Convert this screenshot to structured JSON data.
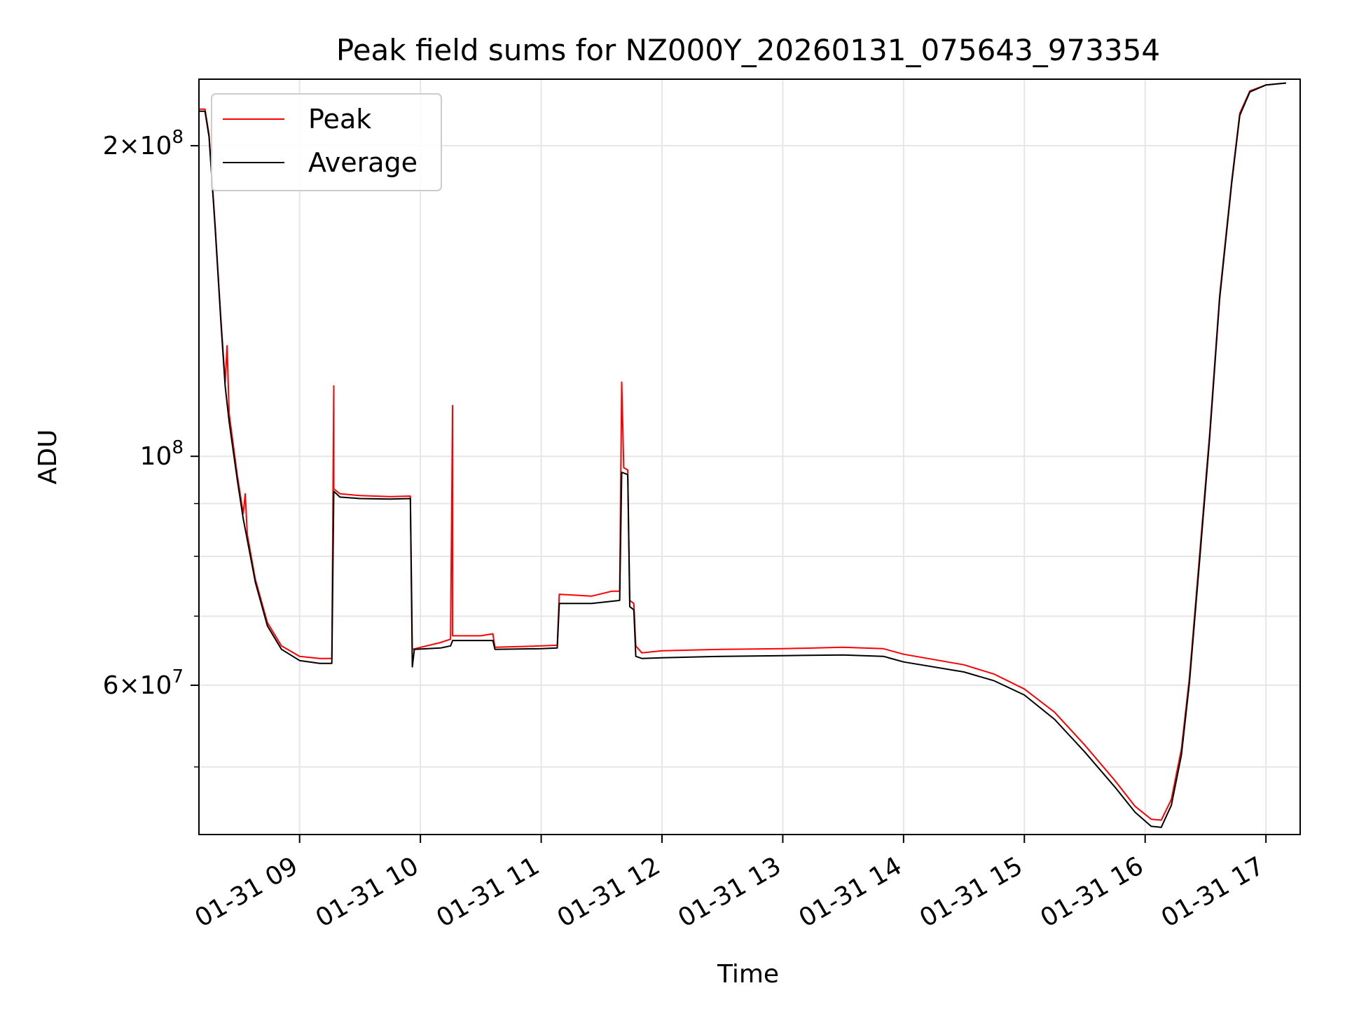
{
  "chart_data": {
    "type": "line",
    "title": "Peak field sums for NZ000Y_20260131_075643_973354",
    "xlabel": "Time",
    "ylabel": "ADU",
    "y_scale": "log",
    "ylim": [
      43000000,
      232000000
    ],
    "xlim": [
      "2026-01-31 08:10",
      "2026-01-31 17:17"
    ],
    "grid": true,
    "legend": "top-left",
    "x_ticks": [
      {
        "t": "2026-01-31 09:00",
        "label": "01-31 09"
      },
      {
        "t": "2026-01-31 10:00",
        "label": "01-31 10"
      },
      {
        "t": "2026-01-31 11:00",
        "label": "01-31 11"
      },
      {
        "t": "2026-01-31 12:00",
        "label": "01-31 12"
      },
      {
        "t": "2026-01-31 13:00",
        "label": "01-31 13"
      },
      {
        "t": "2026-01-31 14:00",
        "label": "01-31 14"
      },
      {
        "t": "2026-01-31 15:00",
        "label": "01-31 15"
      },
      {
        "t": "2026-01-31 16:00",
        "label": "01-31 16"
      },
      {
        "t": "2026-01-31 17:00",
        "label": "01-31 17"
      }
    ],
    "y_major_ticks": [
      {
        "value": 60000000,
        "mant": "6",
        "exp": "7"
      },
      {
        "value": 100000000,
        "mant": "",
        "exp": "8"
      },
      {
        "value": 200000000,
        "mant": "2",
        "exp": "8"
      }
    ],
    "y_minor_ticks": [
      50000000,
      70000000,
      80000000,
      90000000
    ],
    "series": [
      {
        "name": "Peak",
        "color": "#ff0000",
        "points": [
          [
            "2026-01-31 08:10",
            217000000
          ],
          [
            "2026-01-31 08:13",
            217000000
          ],
          [
            "2026-01-31 08:15",
            205000000
          ],
          [
            "2026-01-31 08:18",
            168000000
          ],
          [
            "2026-01-31 08:21",
            135000000
          ],
          [
            "2026-01-31 08:23",
            118000000
          ],
          [
            "2026-01-31 08:24",
            128000000
          ],
          [
            "2026-01-31 08:25",
            110000000
          ],
          [
            "2026-01-31 08:29",
            96000000
          ],
          [
            "2026-01-31 08:32",
            88000000
          ],
          [
            "2026-01-31 08:33",
            92000000
          ],
          [
            "2026-01-31 08:34",
            84000000
          ],
          [
            "2026-01-31 08:38",
            76000000
          ],
          [
            "2026-01-31 08:44",
            69000000
          ],
          [
            "2026-01-31 08:51",
            65500000
          ],
          [
            "2026-01-31 09:00",
            64000000
          ],
          [
            "2026-01-31 09:10",
            63700000
          ],
          [
            "2026-01-31 09:16",
            63700000
          ],
          [
            "2026-01-31 09:17",
            117000000
          ],
          [
            "2026-01-31 09:17",
            93000000
          ],
          [
            "2026-01-31 09:20",
            92000000
          ],
          [
            "2026-01-31 09:30",
            91600000
          ],
          [
            "2026-01-31 09:45",
            91400000
          ],
          [
            "2026-01-31 09:55",
            91500000
          ],
          [
            "2026-01-31 09:56",
            65000000
          ],
          [
            "2026-01-31 10:10",
            66000000
          ],
          [
            "2026-01-31 10:15",
            66500000
          ],
          [
            "2026-01-31 10:16",
            112000000
          ],
          [
            "2026-01-31 10:16",
            67000000
          ],
          [
            "2026-01-31 10:30",
            67000000
          ],
          [
            "2026-01-31 10:36",
            67300000
          ],
          [
            "2026-01-31 10:37",
            65300000
          ],
          [
            "2026-01-31 11:00",
            65500000
          ],
          [
            "2026-01-31 11:08",
            65600000
          ],
          [
            "2026-01-31 11:09",
            73500000
          ],
          [
            "2026-01-31 11:25",
            73200000
          ],
          [
            "2026-01-31 11:35",
            74000000
          ],
          [
            "2026-01-31 11:39",
            74000000
          ],
          [
            "2026-01-31 11:40",
            118000000
          ],
          [
            "2026-01-31 11:41",
            97500000
          ],
          [
            "2026-01-31 11:43",
            97000000
          ],
          [
            "2026-01-31 11:44",
            72500000
          ],
          [
            "2026-01-31 11:46",
            72000000
          ],
          [
            "2026-01-31 11:47",
            65500000
          ],
          [
            "2026-01-31 11:50",
            64500000
          ],
          [
            "2026-01-31 12:00",
            64800000
          ],
          [
            "2026-01-31 12:30",
            65000000
          ],
          [
            "2026-01-31 13:00",
            65100000
          ],
          [
            "2026-01-31 13:30",
            65300000
          ],
          [
            "2026-01-31 13:50",
            65100000
          ],
          [
            "2026-01-31 14:00",
            64300000
          ],
          [
            "2026-01-31 14:30",
            62800000
          ],
          [
            "2026-01-31 14:45",
            61500000
          ],
          [
            "2026-01-31 15:00",
            59500000
          ],
          [
            "2026-01-31 15:15",
            56500000
          ],
          [
            "2026-01-31 15:30",
            52500000
          ],
          [
            "2026-01-31 15:45",
            48500000
          ],
          [
            "2026-01-31 15:55",
            45800000
          ],
          [
            "2026-01-31 16:03",
            44500000
          ],
          [
            "2026-01-31 16:08",
            44400000
          ],
          [
            "2026-01-31 16:13",
            46500000
          ],
          [
            "2026-01-31 16:18",
            52000000
          ],
          [
            "2026-01-31 16:22",
            61000000
          ],
          [
            "2026-01-31 16:27",
            80000000
          ],
          [
            "2026-01-31 16:32",
            105000000
          ],
          [
            "2026-01-31 16:37",
            143000000
          ],
          [
            "2026-01-31 16:43",
            185000000
          ],
          [
            "2026-01-31 16:47",
            215000000
          ],
          [
            "2026-01-31 16:52",
            226000000
          ],
          [
            "2026-01-31 17:00",
            229000000
          ],
          [
            "2026-01-31 17:10",
            230000000
          ]
        ]
      },
      {
        "name": "Average",
        "color": "#000000",
        "points": [
          [
            "2026-01-31 08:10",
            216000000
          ],
          [
            "2026-01-31 08:13",
            216000000
          ],
          [
            "2026-01-31 08:15",
            204000000
          ],
          [
            "2026-01-31 08:18",
            167000000
          ],
          [
            "2026-01-31 08:21",
            134000000
          ],
          [
            "2026-01-31 08:23",
            117000000
          ],
          [
            "2026-01-31 08:25",
            108000000
          ],
          [
            "2026-01-31 08:29",
            95000000
          ],
          [
            "2026-01-31 08:32",
            87000000
          ],
          [
            "2026-01-31 08:34",
            83000000
          ],
          [
            "2026-01-31 08:38",
            75500000
          ],
          [
            "2026-01-31 08:44",
            68500000
          ],
          [
            "2026-01-31 08:51",
            65000000
          ],
          [
            "2026-01-31 09:00",
            63400000
          ],
          [
            "2026-01-31 09:10",
            63000000
          ],
          [
            "2026-01-31 09:16",
            63000000
          ],
          [
            "2026-01-31 09:17",
            92500000
          ],
          [
            "2026-01-31 09:20",
            91300000
          ],
          [
            "2026-01-31 09:30",
            91000000
          ],
          [
            "2026-01-31 09:45",
            90900000
          ],
          [
            "2026-01-31 09:55",
            91000000
          ],
          [
            "2026-01-31 09:56",
            62500000
          ],
          [
            "2026-01-31 09:57",
            65000000
          ],
          [
            "2026-01-31 10:10",
            65200000
          ],
          [
            "2026-01-31 10:15",
            65500000
          ],
          [
            "2026-01-31 10:16",
            66300000
          ],
          [
            "2026-01-31 10:36",
            66300000
          ],
          [
            "2026-01-31 10:37",
            65000000
          ],
          [
            "2026-01-31 11:00",
            65100000
          ],
          [
            "2026-01-31 11:08",
            65200000
          ],
          [
            "2026-01-31 11:09",
            72000000
          ],
          [
            "2026-01-31 11:25",
            72000000
          ],
          [
            "2026-01-31 11:39",
            72500000
          ],
          [
            "2026-01-31 11:40",
            96500000
          ],
          [
            "2026-01-31 11:43",
            96000000
          ],
          [
            "2026-01-31 11:44",
            71500000
          ],
          [
            "2026-01-31 11:46",
            71000000
          ],
          [
            "2026-01-31 11:47",
            64000000
          ],
          [
            "2026-01-31 11:50",
            63700000
          ],
          [
            "2026-01-31 12:00",
            63800000
          ],
          [
            "2026-01-31 12:30",
            64000000
          ],
          [
            "2026-01-31 13:00",
            64100000
          ],
          [
            "2026-01-31 13:30",
            64200000
          ],
          [
            "2026-01-31 13:50",
            64000000
          ],
          [
            "2026-01-31 14:00",
            63200000
          ],
          [
            "2026-01-31 14:30",
            61800000
          ],
          [
            "2026-01-31 14:45",
            60600000
          ],
          [
            "2026-01-31 15:00",
            58700000
          ],
          [
            "2026-01-31 15:15",
            55600000
          ],
          [
            "2026-01-31 15:30",
            51700000
          ],
          [
            "2026-01-31 15:45",
            47800000
          ],
          [
            "2026-01-31 15:55",
            45200000
          ],
          [
            "2026-01-31 16:03",
            43800000
          ],
          [
            "2026-01-31 16:08",
            43700000
          ],
          [
            "2026-01-31 16:13",
            45900000
          ],
          [
            "2026-01-31 16:18",
            51300000
          ],
          [
            "2026-01-31 16:22",
            60300000
          ],
          [
            "2026-01-31 16:27",
            79000000
          ],
          [
            "2026-01-31 16:32",
            104000000
          ],
          [
            "2026-01-31 16:37",
            142000000
          ],
          [
            "2026-01-31 16:43",
            184000000
          ],
          [
            "2026-01-31 16:47",
            214000000
          ],
          [
            "2026-01-31 16:52",
            225500000
          ],
          [
            "2026-01-31 17:00",
            229000000
          ],
          [
            "2026-01-31 17:10",
            230000000
          ]
        ]
      }
    ]
  }
}
